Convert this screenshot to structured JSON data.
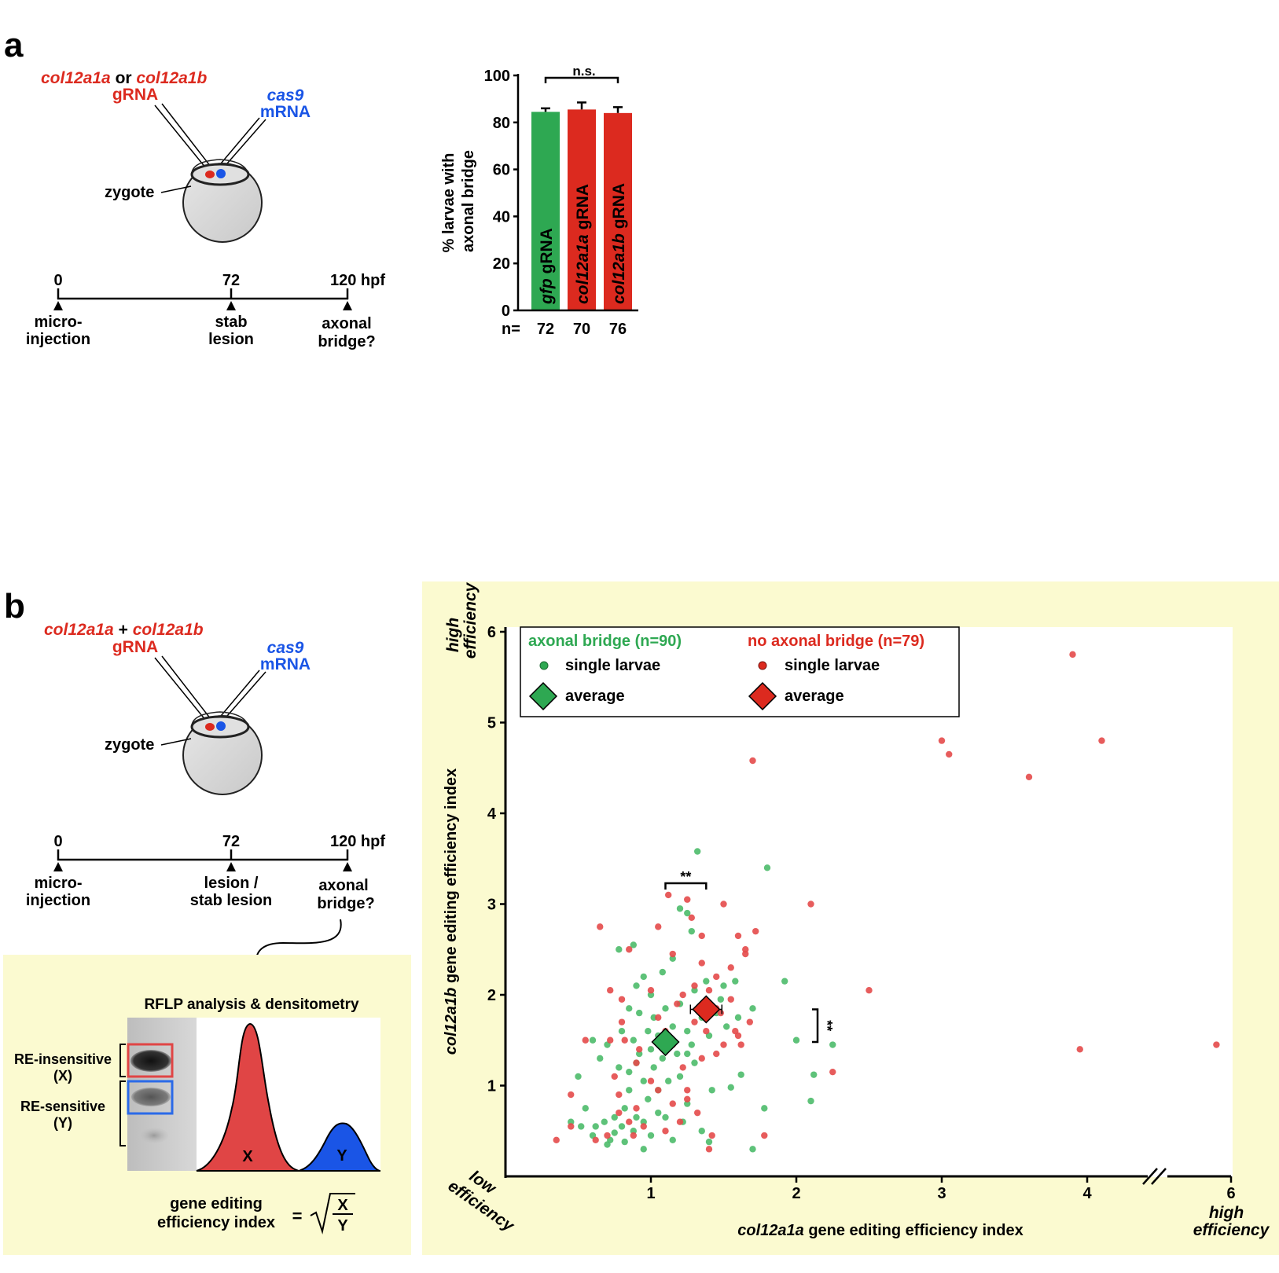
{
  "colors": {
    "red": "#dc2a1f",
    "green": "#2ea852",
    "blue": "#1a55e6",
    "panel_bg": "#fbfad0",
    "ptred": "#e44a4a",
    "ptgreen": "#4dbb6a"
  },
  "panel_a": {
    "letter": "a",
    "inj_genes": {
      "g1": "col12a1a",
      "or": " or ",
      "g2": "col12a1b",
      "grna": "gRNA"
    },
    "cas9": {
      "l1": "cas9",
      "l2": "mRNA"
    },
    "zygote": "zygote",
    "timeline": {
      "t0": "0",
      "t72": "72",
      "t120": "120 hpf",
      "ev0a": "micro-",
      "ev0b": "injection",
      "ev72a": "stab",
      "ev72b": "lesion",
      "ev120a": "axonal",
      "ev120b": "bridge?"
    }
  },
  "bar_chart": {
    "ylabel_l1": "% larvae with",
    "ylabel_l2": "axonal bridge",
    "n_prefix": "n=",
    "sig": "n.s.",
    "bar_suffix": " gRNA"
  },
  "panel_b": {
    "letter": "b",
    "inj_genes": {
      "g1": "col12a1a",
      "plus": " + ",
      "g2": "col12a1b",
      "grna": "gRNA"
    },
    "cas9": {
      "l1": "cas9",
      "l2": "mRNA"
    },
    "zygote": "zygote",
    "timeline": {
      "t0": "0",
      "t72": "72",
      "t120": "120 hpf",
      "ev0a": "micro-",
      "ev0b": "injection",
      "ev72a": "lesion /",
      "ev72b": "stab lesion",
      "ev120a": "axonal",
      "ev120b": "bridge?"
    },
    "rflp": {
      "title": "RFLP analysis & densitometry",
      "ins_l1": "RE-insensitive",
      "ins_l2": "(X)",
      "sens_l1": "RE-sensitive",
      "sens_l2": "(Y)",
      "peak_x": "X",
      "peak_y": "Y",
      "idx_l1": "gene editing",
      "idx_l2": "efficiency index",
      "eq": "=",
      "num": "X",
      "den": "Y"
    }
  },
  "scatter": {
    "ylabel_gene": "col12a1b",
    "ylabel_rest": " gene editing efficiency index",
    "xlabel_gene": "col12a1a",
    "xlabel_rest": " gene editing efficiency index",
    "hi_y_l1": "high",
    "hi_y_l2": "efficiency",
    "lo_l1": "low",
    "lo_l2": "efficiency",
    "hi_x_l1": "high",
    "hi_x_l2": "efficiency",
    "legend": {
      "green_title": "axonal bridge (n=90)",
      "red_title": "no axonal bridge (n=79)",
      "single": "single larvae",
      "average": "average"
    },
    "sig_x": "**",
    "sig_y": "**"
  },
  "chart_data": [
    {
      "type": "bar",
      "ylim": [
        0,
        100
      ],
      "yticks": [
        0,
        20,
        40,
        60,
        80,
        100
      ],
      "categories": [
        "gfp",
        "col12a1a",
        "col12a1b"
      ],
      "values": [
        84.5,
        85.5,
        84
      ],
      "errors": [
        1.5,
        3,
        2.5
      ],
      "n": [
        "72",
        "70",
        "76"
      ],
      "bar_colors": [
        "#2ea852",
        "#dc2a1f",
        "#dc2a1f"
      ]
    },
    {
      "type": "scatter",
      "xlim": [
        0,
        6
      ],
      "ylim": [
        0,
        6
      ],
      "xticks": [
        "1",
        "2",
        "3",
        "4",
        "6"
      ],
      "yticks": [
        "1",
        "2",
        "3",
        "4",
        "5",
        "6"
      ],
      "x_axis_break_between": [
        4,
        6
      ],
      "series": [
        {
          "name": "axonal bridge",
          "average": [
            1.1,
            1.48
          ],
          "points": [
            [
              0.45,
              0.6
            ],
            [
              0.5,
              1.1
            ],
            [
              0.55,
              0.75
            ],
            [
              0.6,
              0.45
            ],
            [
              0.62,
              0.55
            ],
            [
              0.65,
              1.3
            ],
            [
              0.68,
              0.6
            ],
            [
              0.7,
              1.45
            ],
            [
              0.7,
              0.35
            ],
            [
              0.72,
              0.4
            ],
            [
              0.75,
              0.48
            ],
            [
              0.75,
              0.65
            ],
            [
              0.78,
              2.5
            ],
            [
              0.78,
              1.2
            ],
            [
              0.8,
              0.55
            ],
            [
              0.8,
              1.6
            ],
            [
              0.82,
              0.38
            ],
            [
              0.82,
              0.75
            ],
            [
              0.85,
              1.85
            ],
            [
              0.85,
              1.15
            ],
            [
              0.85,
              0.95
            ],
            [
              0.88,
              1.5
            ],
            [
              0.88,
              0.5
            ],
            [
              0.9,
              2.1
            ],
            [
              0.9,
              1.25
            ],
            [
              0.9,
              0.65
            ],
            [
              0.92,
              1.8
            ],
            [
              0.92,
              1.35
            ],
            [
              0.95,
              2.2
            ],
            [
              0.95,
              1.05
            ],
            [
              0.95,
              0.6
            ],
            [
              0.98,
              1.6
            ],
            [
              0.98,
              0.85
            ],
            [
              1.0,
              2.0
            ],
            [
              1.0,
              1.4
            ],
            [
              1.0,
              0.45
            ],
            [
              1.02,
              1.75
            ],
            [
              1.02,
              1.2
            ],
            [
              1.05,
              1.55
            ],
            [
              1.05,
              0.95
            ],
            [
              1.05,
              0.7
            ],
            [
              1.08,
              2.25
            ],
            [
              1.08,
              1.3
            ],
            [
              1.1,
              1.85
            ],
            [
              1.1,
              0.65
            ],
            [
              1.12,
              1.05
            ],
            [
              1.15,
              2.4
            ],
            [
              1.15,
              1.65
            ],
            [
              1.18,
              1.35
            ],
            [
              1.2,
              2.95
            ],
            [
              1.2,
              1.9
            ],
            [
              1.2,
              1.1
            ],
            [
              1.22,
              0.6
            ],
            [
              1.25,
              2.9
            ],
            [
              1.25,
              1.6
            ],
            [
              1.25,
              0.8
            ],
            [
              1.28,
              1.45
            ],
            [
              1.28,
              2.7
            ],
            [
              1.3,
              2.05
            ],
            [
              1.3,
              1.25
            ],
            [
              1.32,
              3.58
            ],
            [
              1.35,
              1.75
            ],
            [
              1.35,
              0.5
            ],
            [
              1.38,
              2.15
            ],
            [
              1.4,
              1.55
            ],
            [
              1.42,
              0.95
            ],
            [
              1.45,
              1.8
            ],
            [
              1.48,
              1.95
            ],
            [
              1.5,
              2.1
            ],
            [
              1.52,
              1.65
            ],
            [
              1.55,
              0.98
            ],
            [
              1.58,
              2.15
            ],
            [
              1.6,
              1.75
            ],
            [
              1.62,
              1.12
            ],
            [
              1.7,
              1.85
            ],
            [
              1.7,
              0.3
            ],
            [
              1.78,
              0.75
            ],
            [
              1.8,
              3.4
            ],
            [
              1.92,
              2.15
            ],
            [
              2.0,
              1.5
            ],
            [
              2.1,
              0.83
            ],
            [
              2.12,
              1.12
            ],
            [
              2.25,
              1.45
            ],
            [
              0.52,
              0.55
            ],
            [
              0.6,
              1.5
            ],
            [
              0.88,
              2.55
            ],
            [
              1.15,
              0.4
            ],
            [
              1.4,
              0.38
            ],
            [
              1.25,
              1.35
            ],
            [
              0.95,
              0.3
            ]
          ]
        },
        {
          "name": "no axonal bridge",
          "average": [
            1.38,
            1.84
          ],
          "points": [
            [
              0.35,
              0.4
            ],
            [
              0.45,
              0.55
            ],
            [
              0.45,
              0.9
            ],
            [
              0.55,
              1.5
            ],
            [
              0.62,
              0.4
            ],
            [
              0.65,
              2.75
            ],
            [
              0.7,
              0.45
            ],
            [
              0.72,
              2.05
            ],
            [
              0.75,
              1.1
            ],
            [
              0.78,
              0.9
            ],
            [
              0.8,
              1.95
            ],
            [
              0.82,
              1.5
            ],
            [
              0.85,
              2.5
            ],
            [
              0.85,
              0.6
            ],
            [
              0.88,
              0.45
            ],
            [
              0.9,
              0.75
            ],
            [
              0.92,
              1.4
            ],
            [
              0.95,
              0.55
            ],
            [
              1.0,
              2.05
            ],
            [
              1.0,
              1.05
            ],
            [
              1.05,
              2.75
            ],
            [
              1.05,
              0.95
            ],
            [
              1.1,
              1.6
            ],
            [
              1.12,
              3.1
            ],
            [
              1.15,
              2.45
            ],
            [
              1.15,
              1.45
            ],
            [
              1.15,
              0.8
            ],
            [
              1.18,
              1.9
            ],
            [
              1.2,
              0.6
            ],
            [
              1.22,
              2.0
            ],
            [
              1.22,
              1.2
            ],
            [
              1.25,
              0.85
            ],
            [
              1.28,
              2.85
            ],
            [
              1.3,
              2.1
            ],
            [
              1.3,
              1.7
            ],
            [
              1.32,
              0.7
            ],
            [
              1.35,
              2.35
            ],
            [
              1.35,
              1.3
            ],
            [
              1.38,
              1.6
            ],
            [
              1.4,
              2.05
            ],
            [
              1.42,
              0.45
            ],
            [
              1.45,
              2.2
            ],
            [
              1.48,
              1.8
            ],
            [
              1.5,
              3.0
            ],
            [
              1.5,
              1.45
            ],
            [
              1.55,
              1.95
            ],
            [
              1.58,
              1.6
            ],
            [
              1.6,
              2.65
            ],
            [
              1.62,
              1.45
            ],
            [
              1.65,
              2.5
            ],
            [
              1.68,
              1.7
            ],
            [
              1.7,
              4.58
            ],
            [
              1.72,
              2.7
            ],
            [
              1.78,
              0.45
            ],
            [
              2.1,
              3.0
            ],
            [
              2.25,
              1.15
            ],
            [
              2.5,
              2.05
            ],
            [
              3.0,
              4.8
            ],
            [
              3.05,
              4.65
            ],
            [
              3.6,
              4.4
            ],
            [
              3.9,
              5.75
            ],
            [
              3.95,
              1.4
            ],
            [
              4.1,
              4.8
            ],
            [
              5.85,
              1.45
            ],
            [
              0.72,
              1.5
            ],
            [
              1.25,
              0.95
            ],
            [
              1.45,
              1.35
            ],
            [
              1.6,
              1.55
            ],
            [
              0.8,
              1.7
            ],
            [
              1.05,
              1.75
            ],
            [
              1.35,
              2.65
            ],
            [
              1.25,
              3.05
            ],
            [
              1.65,
              2.45
            ],
            [
              1.1,
              0.5
            ],
            [
              1.4,
              0.3
            ],
            [
              1.45,
              1.85
            ],
            [
              0.9,
              1.25
            ],
            [
              0.78,
              0.7
            ],
            [
              1.55,
              2.3
            ]
          ]
        }
      ]
    }
  ]
}
